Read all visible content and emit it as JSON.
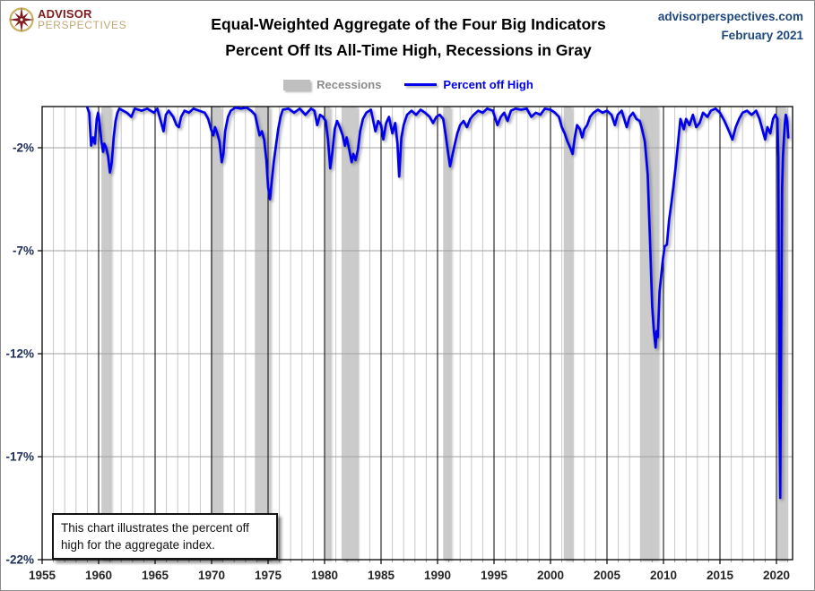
{
  "header": {
    "logo_line1": "ADVISOR",
    "logo_line2": "PERSPECTIVES",
    "site": "advisorperspectives.com",
    "date": "February 2021"
  },
  "title": {
    "line1": "Equal-Weighted Aggregate of the Four Big Indicators",
    "line2": "Percent Off Its All-Time High, Recessions in Gray"
  },
  "legend": {
    "recessions_label": "Recessions",
    "series_label": "Percent off High"
  },
  "annotation": {
    "line1": "This chart illustrates the percent off",
    "line2": "high for the aggregate index."
  },
  "chart_data": {
    "type": "line",
    "title": "Equal-Weighted Aggregate of the Four Big Indicators — Percent Off Its All-Time High",
    "x_axis": {
      "min": 1955,
      "max": 2021.4,
      "tick_years": [
        1955,
        1960,
        1965,
        1970,
        1975,
        1980,
        1985,
        1990,
        1995,
        2000,
        2005,
        2010,
        2015,
        2020
      ],
      "minor_step_years": 1
    },
    "y_axis": {
      "min": -22,
      "max": 0,
      "ticks": [
        {
          "value": -2,
          "label": "-2%"
        },
        {
          "value": -7,
          "label": "-7%"
        },
        {
          "value": -12,
          "label": "-12%"
        },
        {
          "value": -17,
          "label": "-17%"
        },
        {
          "value": -22,
          "label": "-22%"
        }
      ]
    },
    "grid": {
      "minor_vertical": true,
      "major_vertical": true,
      "horizontal_at_ticks": true
    },
    "legend_position": "top-center",
    "colors": {
      "line": "#0101EE",
      "recession_band": "#CBCBCB",
      "minor_grid": "#C8C8C8",
      "major_grid": "#000000",
      "horizontal_grid": "#A0A0A0",
      "plot_border": "#000000",
      "y_label": "#1c2d5a",
      "x_label": "#262626"
    },
    "recessions": [
      {
        "start": 1960.25,
        "end": 1961.08
      },
      {
        "start": 1969.92,
        "end": 1970.83
      },
      {
        "start": 1973.83,
        "end": 1975.17
      },
      {
        "start": 1980.0,
        "end": 1980.5
      },
      {
        "start": 1981.5,
        "end": 1982.87
      },
      {
        "start": 1990.5,
        "end": 1991.17
      },
      {
        "start": 2001.17,
        "end": 2001.87
      },
      {
        "start": 2007.92,
        "end": 2009.5
      },
      {
        "start": 2020.08,
        "end": 2020.83
      }
    ],
    "series": [
      {
        "name": "Percent off High",
        "points": [
          [
            1959.0,
            -0.05
          ],
          [
            1959.17,
            -0.3
          ],
          [
            1959.33,
            -1.9
          ],
          [
            1959.5,
            -1.5
          ],
          [
            1959.67,
            -1.8
          ],
          [
            1959.83,
            -0.6
          ],
          [
            1959.95,
            -0.3
          ],
          [
            1960.1,
            -0.9
          ],
          [
            1960.25,
            -1.7
          ],
          [
            1960.4,
            -2.2
          ],
          [
            1960.5,
            -1.8
          ],
          [
            1960.67,
            -2.0
          ],
          [
            1960.83,
            -2.4
          ],
          [
            1961.0,
            -3.2
          ],
          [
            1961.17,
            -2.7
          ],
          [
            1961.33,
            -1.5
          ],
          [
            1961.5,
            -0.7
          ],
          [
            1961.67,
            -0.3
          ],
          [
            1961.83,
            -0.1
          ],
          [
            1962.5,
            -0.3
          ],
          [
            1962.9,
            -0.5
          ],
          [
            1963.2,
            -0.1
          ],
          [
            1963.8,
            -0.2
          ],
          [
            1964.3,
            -0.1
          ],
          [
            1964.9,
            -0.3
          ],
          [
            1965.2,
            -0.1
          ],
          [
            1965.75,
            -1.2
          ],
          [
            1965.95,
            -0.4
          ],
          [
            1966.2,
            -0.2
          ],
          [
            1966.6,
            -0.5
          ],
          [
            1966.9,
            -0.9
          ],
          [
            1967.1,
            -1.0
          ],
          [
            1967.3,
            -0.5
          ],
          [
            1967.6,
            -0.2
          ],
          [
            1968.0,
            -0.3
          ],
          [
            1968.4,
            -0.1
          ],
          [
            1968.9,
            -0.2
          ],
          [
            1969.4,
            -0.3
          ],
          [
            1969.7,
            -0.6
          ],
          [
            1969.95,
            -1.1
          ],
          [
            1970.15,
            -1.4
          ],
          [
            1970.3,
            -1.0
          ],
          [
            1970.5,
            -1.3
          ],
          [
            1970.7,
            -1.7
          ],
          [
            1970.9,
            -2.7
          ],
          [
            1971.05,
            -2.3
          ],
          [
            1971.2,
            -1.2
          ],
          [
            1971.45,
            -0.5
          ],
          [
            1971.7,
            -0.2
          ],
          [
            1972.1,
            -0.05
          ],
          [
            1972.6,
            -0.1
          ],
          [
            1973.1,
            -0.05
          ],
          [
            1973.5,
            -0.2
          ],
          [
            1973.85,
            -0.4
          ],
          [
            1974.05,
            -0.9
          ],
          [
            1974.25,
            -1.4
          ],
          [
            1974.45,
            -1.2
          ],
          [
            1974.65,
            -1.6
          ],
          [
            1974.85,
            -2.6
          ],
          [
            1975.0,
            -3.9
          ],
          [
            1975.17,
            -4.5
          ],
          [
            1975.33,
            -3.6
          ],
          [
            1975.5,
            -2.7
          ],
          [
            1975.7,
            -1.9
          ],
          [
            1975.9,
            -1.1
          ],
          [
            1976.1,
            -0.5
          ],
          [
            1976.3,
            -0.15
          ],
          [
            1976.8,
            -0.1
          ],
          [
            1977.3,
            -0.3
          ],
          [
            1977.8,
            -0.1
          ],
          [
            1978.3,
            -0.4
          ],
          [
            1978.8,
            -0.1
          ],
          [
            1979.1,
            -0.2
          ],
          [
            1979.35,
            -0.9
          ],
          [
            1979.6,
            -0.4
          ],
          [
            1979.85,
            -0.5
          ],
          [
            1980.1,
            -0.7
          ],
          [
            1980.3,
            -1.6
          ],
          [
            1980.5,
            -3.0
          ],
          [
            1980.7,
            -2.2
          ],
          [
            1980.9,
            -1.1
          ],
          [
            1981.1,
            -0.7
          ],
          [
            1981.35,
            -1.0
          ],
          [
            1981.6,
            -1.4
          ],
          [
            1981.8,
            -1.9
          ],
          [
            1981.95,
            -1.5
          ],
          [
            1982.15,
            -2.0
          ],
          [
            1982.4,
            -2.7
          ],
          [
            1982.55,
            -2.3
          ],
          [
            1982.75,
            -2.6
          ],
          [
            1982.95,
            -2.1
          ],
          [
            1983.15,
            -1.2
          ],
          [
            1983.4,
            -0.6
          ],
          [
            1983.7,
            -0.3
          ],
          [
            1984.1,
            -0.15
          ],
          [
            1984.5,
            -1.2
          ],
          [
            1984.75,
            -0.7
          ],
          [
            1985.0,
            -0.9
          ],
          [
            1985.2,
            -1.6
          ],
          [
            1985.45,
            -0.8
          ],
          [
            1985.7,
            -0.5
          ],
          [
            1986.0,
            -1.3
          ],
          [
            1986.25,
            -0.8
          ],
          [
            1986.45,
            -1.8
          ],
          [
            1986.6,
            -3.4
          ],
          [
            1986.8,
            -1.5
          ],
          [
            1987.0,
            -0.9
          ],
          [
            1987.3,
            -0.4
          ],
          [
            1987.7,
            -0.2
          ],
          [
            1988.1,
            -0.4
          ],
          [
            1988.5,
            -0.15
          ],
          [
            1988.9,
            -0.3
          ],
          [
            1989.3,
            -0.5
          ],
          [
            1989.6,
            -0.8
          ],
          [
            1989.9,
            -0.5
          ],
          [
            1990.2,
            -0.4
          ],
          [
            1990.5,
            -0.6
          ],
          [
            1990.7,
            -1.3
          ],
          [
            1990.9,
            -2.1
          ],
          [
            1991.1,
            -2.9
          ],
          [
            1991.3,
            -2.4
          ],
          [
            1991.5,
            -1.9
          ],
          [
            1991.75,
            -1.3
          ],
          [
            1992.0,
            -0.9
          ],
          [
            1992.3,
            -0.7
          ],
          [
            1992.6,
            -1.0
          ],
          [
            1992.9,
            -0.6
          ],
          [
            1993.2,
            -0.4
          ],
          [
            1993.6,
            -0.2
          ],
          [
            1994.0,
            -0.3
          ],
          [
            1994.4,
            -0.1
          ],
          [
            1994.9,
            -0.2
          ],
          [
            1995.3,
            -0.9
          ],
          [
            1995.6,
            -0.5
          ],
          [
            1995.9,
            -0.3
          ],
          [
            1996.2,
            -0.7
          ],
          [
            1996.5,
            -0.2
          ],
          [
            1996.9,
            -0.1
          ],
          [
            1997.4,
            -0.15
          ],
          [
            1997.9,
            -0.1
          ],
          [
            1998.3,
            -0.5
          ],
          [
            1998.7,
            -0.3
          ],
          [
            1999.1,
            -0.4
          ],
          [
            1999.5,
            -0.1
          ],
          [
            2000.0,
            -0.15
          ],
          [
            2000.4,
            -0.3
          ],
          [
            2000.75,
            -0.5
          ],
          [
            2001.0,
            -1.0
          ],
          [
            2001.25,
            -1.3
          ],
          [
            2001.5,
            -1.7
          ],
          [
            2001.75,
            -2.0
          ],
          [
            2001.95,
            -2.3
          ],
          [
            2002.15,
            -1.5
          ],
          [
            2002.35,
            -0.9
          ],
          [
            2002.6,
            -1.1
          ],
          [
            2002.8,
            -1.5
          ],
          [
            2003.0,
            -1.1
          ],
          [
            2003.25,
            -0.9
          ],
          [
            2003.5,
            -0.5
          ],
          [
            2003.8,
            -0.3
          ],
          [
            2004.2,
            -0.15
          ],
          [
            2004.6,
            -0.3
          ],
          [
            2005.0,
            -0.2
          ],
          [
            2005.4,
            -0.4
          ],
          [
            2005.7,
            -0.9
          ],
          [
            2005.95,
            -0.4
          ],
          [
            2006.3,
            -0.2
          ],
          [
            2006.75,
            -1.0
          ],
          [
            2007.0,
            -0.5
          ],
          [
            2007.3,
            -0.3
          ],
          [
            2007.6,
            -0.6
          ],
          [
            2007.9,
            -0.7
          ],
          [
            2008.1,
            -1.1
          ],
          [
            2008.35,
            -1.7
          ],
          [
            2008.6,
            -3.3
          ],
          [
            2008.8,
            -6.4
          ],
          [
            2009.0,
            -9.7
          ],
          [
            2009.15,
            -10.9
          ],
          [
            2009.3,
            -11.7
          ],
          [
            2009.4,
            -10.9
          ],
          [
            2009.5,
            -11.2
          ],
          [
            2009.65,
            -9.0
          ],
          [
            2009.8,
            -8.2
          ],
          [
            2009.95,
            -7.4
          ],
          [
            2010.1,
            -6.8
          ],
          [
            2010.3,
            -6.7
          ],
          [
            2010.5,
            -5.5
          ],
          [
            2010.7,
            -4.7
          ],
          [
            2010.9,
            -3.8
          ],
          [
            2011.1,
            -2.8
          ],
          [
            2011.3,
            -1.7
          ],
          [
            2011.5,
            -0.6
          ],
          [
            2011.8,
            -1.1
          ],
          [
            2012.0,
            -0.6
          ],
          [
            2012.3,
            -0.9
          ],
          [
            2012.6,
            -0.4
          ],
          [
            2012.9,
            -1.0
          ],
          [
            2013.2,
            -0.8
          ],
          [
            2013.5,
            -0.3
          ],
          [
            2013.9,
            -0.5
          ],
          [
            2014.2,
            -0.2
          ],
          [
            2014.6,
            -0.1
          ],
          [
            2015.0,
            -0.3
          ],
          [
            2015.4,
            -0.7
          ],
          [
            2015.8,
            -1.2
          ],
          [
            2016.1,
            -1.6
          ],
          [
            2016.4,
            -1.0
          ],
          [
            2016.7,
            -0.6
          ],
          [
            2017.0,
            -0.3
          ],
          [
            2017.4,
            -0.2
          ],
          [
            2017.8,
            -0.4
          ],
          [
            2018.2,
            -0.2
          ],
          [
            2018.5,
            -0.6
          ],
          [
            2018.8,
            -1.2
          ],
          [
            2019.0,
            -1.6
          ],
          [
            2019.2,
            -1.0
          ],
          [
            2019.45,
            -1.3
          ],
          [
            2019.7,
            -0.6
          ],
          [
            2019.9,
            -0.4
          ],
          [
            2020.08,
            -0.6
          ],
          [
            2020.17,
            -2.5
          ],
          [
            2020.25,
            -13.5
          ],
          [
            2020.33,
            -19.0
          ],
          [
            2020.42,
            -10.5
          ],
          [
            2020.5,
            -4.0
          ],
          [
            2020.58,
            -2.4
          ],
          [
            2020.67,
            -1.5
          ],
          [
            2020.75,
            -0.8
          ],
          [
            2020.83,
            -0.4
          ],
          [
            2020.95,
            -0.7
          ],
          [
            2021.05,
            -1.5
          ]
        ]
      }
    ]
  }
}
